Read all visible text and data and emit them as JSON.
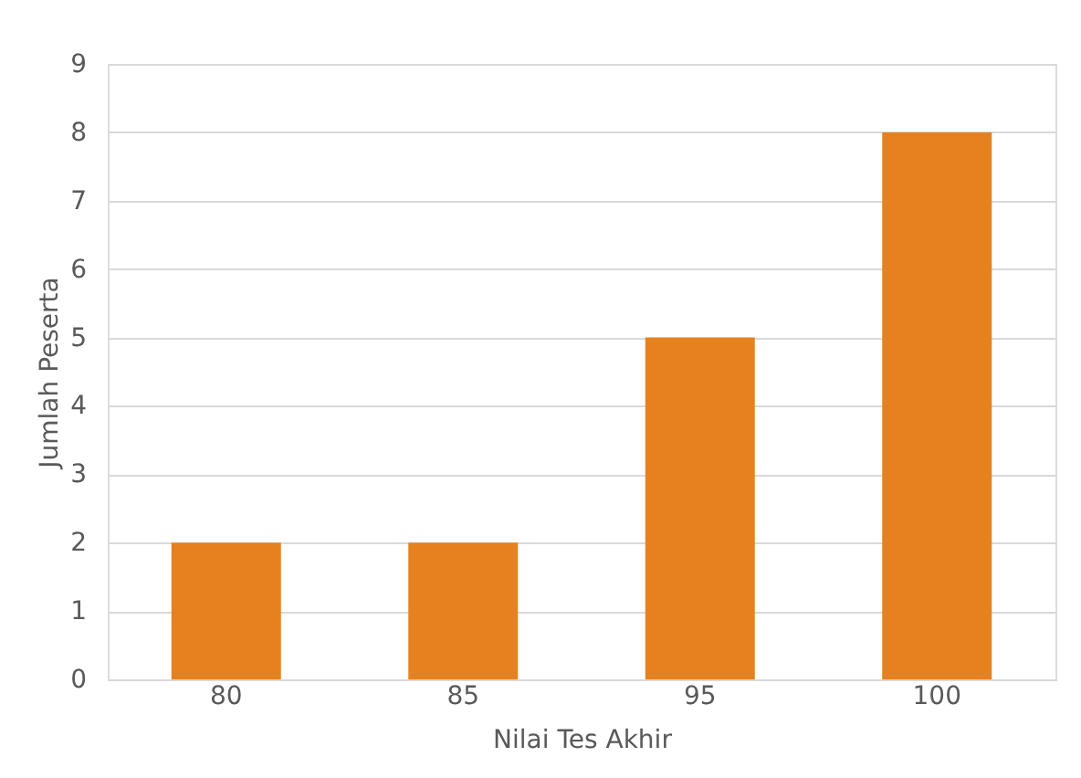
{
  "chart_data": {
    "type": "bar",
    "xlabel": "Nilai Tes Akhir",
    "ylabel": "Jumlah Peserta",
    "categories": [
      "80",
      "85",
      "95",
      "100"
    ],
    "values": [
      2,
      2,
      5,
      8
    ],
    "color": "#e5821f",
    "ylim": [
      0,
      9
    ],
    "yticks": [
      0,
      1,
      2,
      3,
      4,
      5,
      6,
      7,
      8,
      9
    ],
    "grid": "y"
  }
}
